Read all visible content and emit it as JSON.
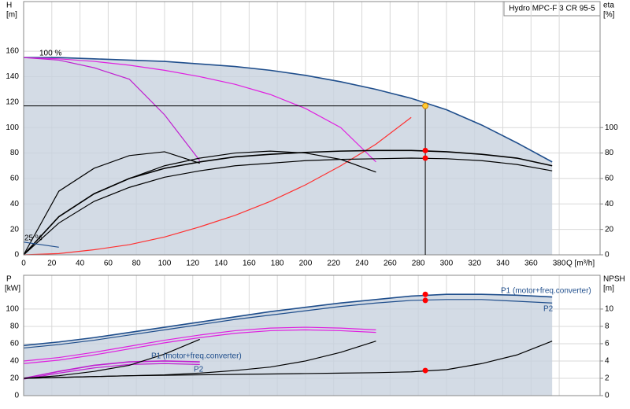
{
  "chart_data": [
    {
      "type": "line",
      "title": "Hydro MPC-F 3 CR 95-5",
      "ylabel": [
        "H",
        "[m]"
      ],
      "y2label": [
        "eta",
        "[%]"
      ],
      "xlabel": "Q [m³/h]",
      "annotations": [
        "25 %",
        "100 %"
      ],
      "x": [
        0,
        25,
        50,
        75,
        100,
        125,
        150,
        175,
        200,
        225,
        250,
        275,
        300,
        325,
        350,
        375
      ],
      "xlim": [
        0,
        409
      ],
      "xticks": [
        0,
        20,
        40,
        60,
        80,
        100,
        120,
        140,
        160,
        180,
        200,
        220,
        240,
        260,
        280,
        300,
        320,
        340,
        360,
        380
      ],
      "ylim": [
        0,
        199
      ],
      "yticks": [
        0,
        20,
        40,
        60,
        80,
        100,
        120,
        140,
        160
      ],
      "y2lim": [
        0,
        199
      ],
      "y2ticks": [
        0,
        20,
        40,
        60,
        80,
        100
      ],
      "grid": true,
      "fill_color": "#c8d2de",
      "series": [
        {
          "color": "#1f4e8c",
          "values": [
            155,
            155,
            154,
            153,
            152,
            150,
            148,
            145,
            141,
            136,
            130,
            123,
            114,
            102,
            88,
            73
          ]
        },
        {
          "color": "#e020e0",
          "values": [
            155,
            154,
            152,
            149,
            145,
            140,
            134,
            126,
            115,
            100,
            73,
            null,
            null,
            null,
            null,
            null
          ]
        },
        {
          "color": "#c020d0",
          "values": [
            155,
            153,
            147,
            138,
            110,
            74,
            null,
            null,
            null,
            null,
            null,
            null,
            null,
            null,
            null,
            null
          ]
        },
        {
          "color": "#ff3030",
          "values": [
            0,
            1,
            4,
            8,
            14,
            22,
            31,
            42,
            55,
            70,
            87,
            108,
            null,
            null,
            null,
            null
          ]
        },
        {
          "color": "#000000",
          "axis": "y2",
          "values": [
            0,
            30,
            48,
            60,
            68,
            73,
            77,
            79,
            80.5,
            81.5,
            82,
            82,
            81,
            79,
            76,
            70
          ]
        },
        {
          "color": "#000000",
          "axis": "y2",
          "values": [
            0,
            25,
            42,
            53,
            61,
            66,
            70,
            72,
            74,
            75,
            75.5,
            76,
            75.5,
            74,
            71,
            66
          ]
        },
        {
          "color": "#000000",
          "axis": "y2",
          "values": [
            0,
            30,
            48,
            60,
            70,
            76,
            80,
            81.5,
            80,
            75,
            65,
            null,
            null,
            null,
            null,
            null
          ]
        },
        {
          "color": "#000000",
          "axis": "y2",
          "values": [
            0,
            50,
            68,
            78,
            81,
            72,
            null,
            null,
            null,
            null,
            null,
            null,
            null,
            null,
            null,
            null
          ]
        },
        {
          "color": "#1f4e8c",
          "values": [
            10,
            6,
            null,
            null,
            null,
            null,
            null,
            null,
            null,
            null,
            null,
            null,
            null,
            null,
            null,
            null
          ]
        }
      ],
      "points": [
        {
          "x": 285,
          "y": 117,
          "color": "#ffcc33"
        },
        {
          "x": 285,
          "y": 82,
          "color": "#ff0000",
          "axis": "y2"
        },
        {
          "x": 285,
          "y": 76,
          "color": "#ff0000",
          "axis": "y2"
        }
      ]
    },
    {
      "type": "line",
      "ylabel": [
        "P",
        "[kW]"
      ],
      "y2label": [
        "NPSH",
        "[m]"
      ],
      "annotations": [
        "P1 (motor+freq.converter)",
        "P2"
      ],
      "x": [
        0,
        25,
        50,
        75,
        100,
        125,
        150,
        175,
        200,
        225,
        250,
        275,
        300,
        325,
        350,
        375
      ],
      "xlim": [
        0,
        409
      ],
      "ylim": [
        0,
        139
      ],
      "yticks": [
        0,
        20,
        40,
        60,
        80,
        100
      ],
      "y2lim": [
        0,
        13.9
      ],
      "y2ticks": [
        0,
        2,
        4,
        6,
        8,
        10
      ],
      "grid": true,
      "fill_color": "#c8d2de",
      "series": [
        {
          "name": "P1 (motor+freq.converter)",
          "color": "#1f4e8c",
          "values": [
            58,
            62,
            67,
            73,
            79,
            85,
            91,
            97,
            102,
            107,
            111,
            115,
            117,
            117,
            116,
            114
          ]
        },
        {
          "name": "P2",
          "color": "#1f4e8c",
          "values": [
            55,
            59,
            64,
            70,
            76,
            82,
            88,
            93,
            98,
            103,
            107,
            110,
            111,
            111,
            109,
            107
          ]
        },
        {
          "color": "#e020e0",
          "values": [
            40,
            44,
            50,
            57,
            64,
            70,
            75,
            78,
            79,
            78,
            76,
            null,
            null,
            null,
            null,
            null
          ]
        },
        {
          "color": "#e020e0",
          "values": [
            37,
            41,
            47,
            54,
            61,
            67,
            72,
            75,
            76,
            75,
            73,
            null,
            null,
            null,
            null,
            null
          ]
        },
        {
          "color": "#c020d0",
          "values": [
            20,
            28,
            35,
            39,
            40,
            39,
            null,
            null,
            null,
            null,
            null,
            null,
            null,
            null,
            null,
            null
          ]
        },
        {
          "color": "#c020d0",
          "values": [
            19,
            26,
            32,
            36,
            37,
            36,
            null,
            null,
            null,
            null,
            null,
            null,
            null,
            null,
            null,
            null
          ]
        },
        {
          "color": "#000000",
          "axis": "y2",
          "values": [
            2,
            2.1,
            2.2,
            2.3,
            2.35,
            2.4,
            2.45,
            2.5,
            2.55,
            2.6,
            2.65,
            2.75,
            3,
            3.7,
            4.7,
            6.3
          ]
        },
        {
          "color": "#000000",
          "axis": "y2",
          "values": [
            2,
            2.1,
            2.2,
            2.3,
            2.4,
            2.6,
            2.9,
            3.3,
            4,
            5,
            6.3,
            null,
            null,
            null,
            null,
            null
          ]
        },
        {
          "color": "#000000",
          "axis": "y2",
          "values": [
            2,
            2.3,
            2.8,
            3.5,
            4.8,
            6.5,
            null,
            null,
            null,
            null,
            null,
            null,
            null,
            null,
            null,
            null
          ]
        }
      ],
      "points": [
        {
          "x": 285,
          "y": 117,
          "color": "#ff0000"
        },
        {
          "x": 285,
          "y": 110,
          "color": "#ff0000"
        },
        {
          "x": 285,
          "y": 2.9,
          "color": "#ff0000",
          "axis": "y2"
        }
      ]
    }
  ]
}
